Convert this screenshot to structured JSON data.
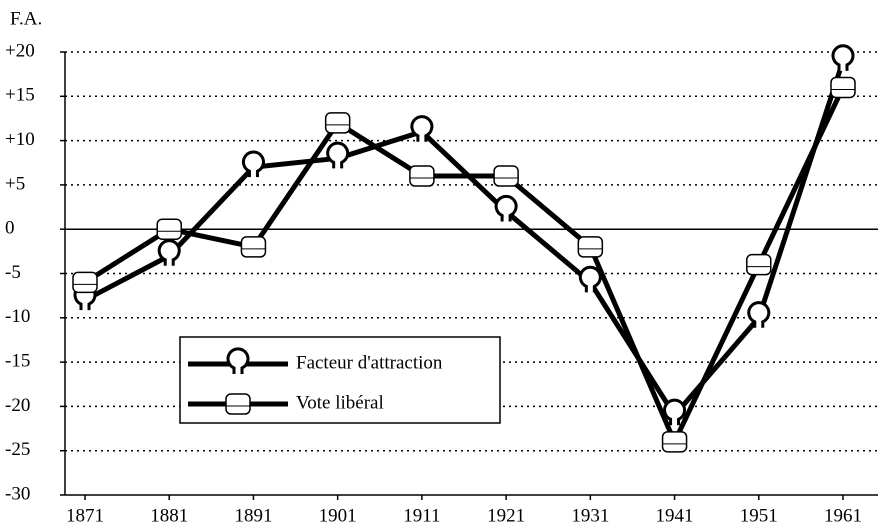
{
  "chart_data": {
    "type": "line",
    "ylabel": "F.A.",
    "categories": [
      "1871",
      "1881",
      "1891",
      "1901",
      "1911",
      "1921",
      "1931",
      "1941",
      "1951",
      "1961"
    ],
    "series": [
      {
        "name": "Facteur d'attraction",
        "color": "#000000",
        "marker": "keyhole",
        "values": [
          -8,
          -3,
          7,
          8,
          11,
          2,
          -6,
          -21,
          -10,
          19
        ]
      },
      {
        "name": "Vote libéral",
        "color": "#000000",
        "marker": "square",
        "values": [
          -6,
          0,
          -2,
          12,
          6,
          6,
          -2,
          -24,
          -4,
          16
        ]
      }
    ],
    "ylim": [
      -30,
      20
    ],
    "yticks": [
      -30,
      -25,
      -20,
      -15,
      -10,
      -5,
      0,
      {
        "value": 5,
        "label": "+5"
      },
      {
        "value": 10,
        "label": "+10"
      },
      {
        "value": 15,
        "label": "+15"
      },
      {
        "value": 20,
        "label": "+20"
      }
    ],
    "grid": true,
    "legend": "lower left"
  }
}
